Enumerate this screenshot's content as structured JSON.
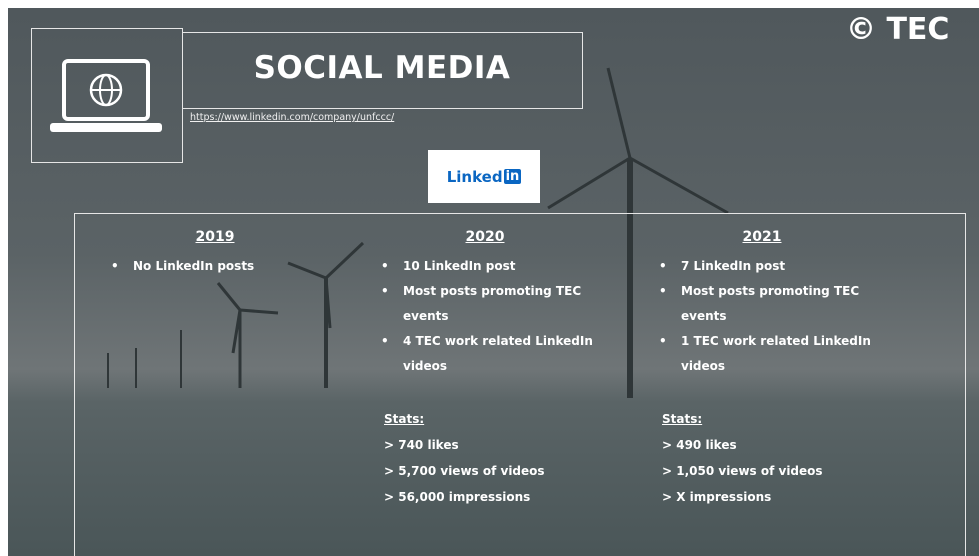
{
  "header": {
    "title": "SOCIAL MEDIA",
    "url": "https://www.linkedin.com/company/unfccc/"
  },
  "logo": {
    "mark": "©",
    "text": "TEC"
  },
  "linkedin_logo": {
    "word": "Linked",
    "badge": "in"
  },
  "columns": [
    {
      "year": "2019",
      "bullets": [
        "No LinkedIn posts"
      ]
    },
    {
      "year": "2020",
      "bullets": [
        "10 LinkedIn post",
        "Most posts promoting TEC events",
        "4 TEC work related LinkedIn videos"
      ],
      "stats_label": "Stats:",
      "stats": [
        "> 740 likes",
        "> 5,700 views of videos",
        "> 56,000 impressions"
      ]
    },
    {
      "year": "2021",
      "bullets": [
        "7 LinkedIn post",
        "Most posts promoting TEC events",
        "1 TEC work related LinkedIn videos"
      ],
      "stats_label": "Stats:",
      "stats": [
        "> 490 likes",
        "> 1,050 views of videos",
        "> X impressions"
      ]
    }
  ]
}
